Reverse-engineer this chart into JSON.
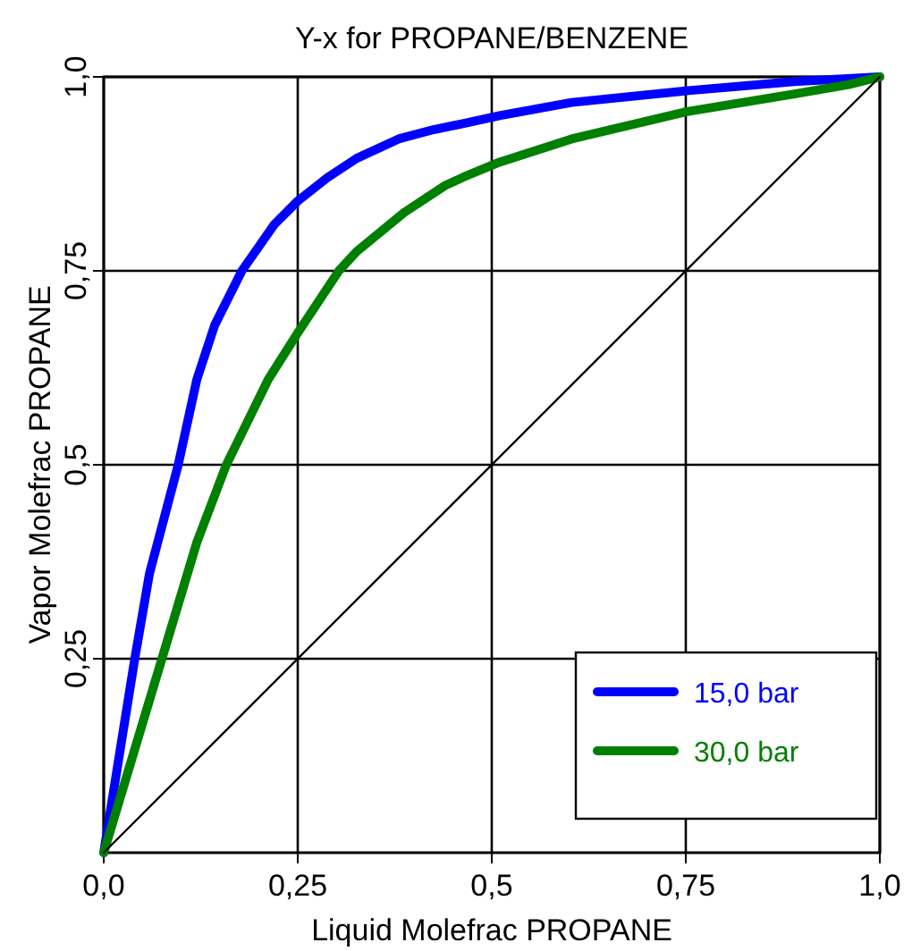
{
  "chart_data": {
    "type": "line",
    "title": "Y-x for PROPANE/BENZENE",
    "xlabel": "Liquid Molefrac PROPANE",
    "ylabel": "Vapor Molefrac PROPANE",
    "xlim": [
      0,
      1
    ],
    "ylim": [
      0,
      1
    ],
    "xticks": [
      {
        "value": 0,
        "label": "0,0"
      },
      {
        "value": 0.25,
        "label": "0,25"
      },
      {
        "value": 0.5,
        "label": "0,5"
      },
      {
        "value": 0.75,
        "label": "0,75"
      },
      {
        "value": 1,
        "label": "1,0"
      }
    ],
    "yticks": [
      {
        "value": 0.25,
        "label": "0,25"
      },
      {
        "value": 0.5,
        "label": "0,5"
      },
      {
        "value": 0.75,
        "label": "0,75"
      },
      {
        "value": 1,
        "label": "1,0"
      }
    ],
    "grid": true,
    "legend": "bottom right",
    "marker": "none",
    "line_style": "solid",
    "series": [
      {
        "name": "15,0 bar",
        "color": "#0000ff",
        "x": [
          0,
          0.04,
          0.059,
          0.096,
          0.12,
          0.143,
          0.178,
          0.22,
          0.25,
          0.288,
          0.326,
          0.38,
          0.425,
          0.464,
          0.51,
          0.603,
          0.75,
          0.89,
          1
        ],
        "values": [
          0,
          0.25,
          0.36,
          0.5,
          0.61,
          0.68,
          0.75,
          0.81,
          0.84,
          0.87,
          0.895,
          0.92,
          0.932,
          0.94,
          0.95,
          0.967,
          0.982,
          0.994,
          1
        ]
      },
      {
        "name": "30,0 bar",
        "color": "#008000",
        "x": [
          0,
          0.075,
          0.12,
          0.158,
          0.212,
          0.25,
          0.303,
          0.326,
          0.387,
          0.44,
          0.464,
          0.51,
          0.603,
          0.75,
          0.89,
          0.96,
          1
        ],
        "values": [
          0,
          0.25,
          0.4,
          0.5,
          0.61,
          0.67,
          0.75,
          0.775,
          0.825,
          0.86,
          0.871,
          0.89,
          0.92,
          0.955,
          0.978,
          0.99,
          1
        ]
      },
      {
        "color": "#000000",
        "x": [
          0,
          1
        ],
        "values": [
          0,
          1
        ]
      }
    ]
  }
}
